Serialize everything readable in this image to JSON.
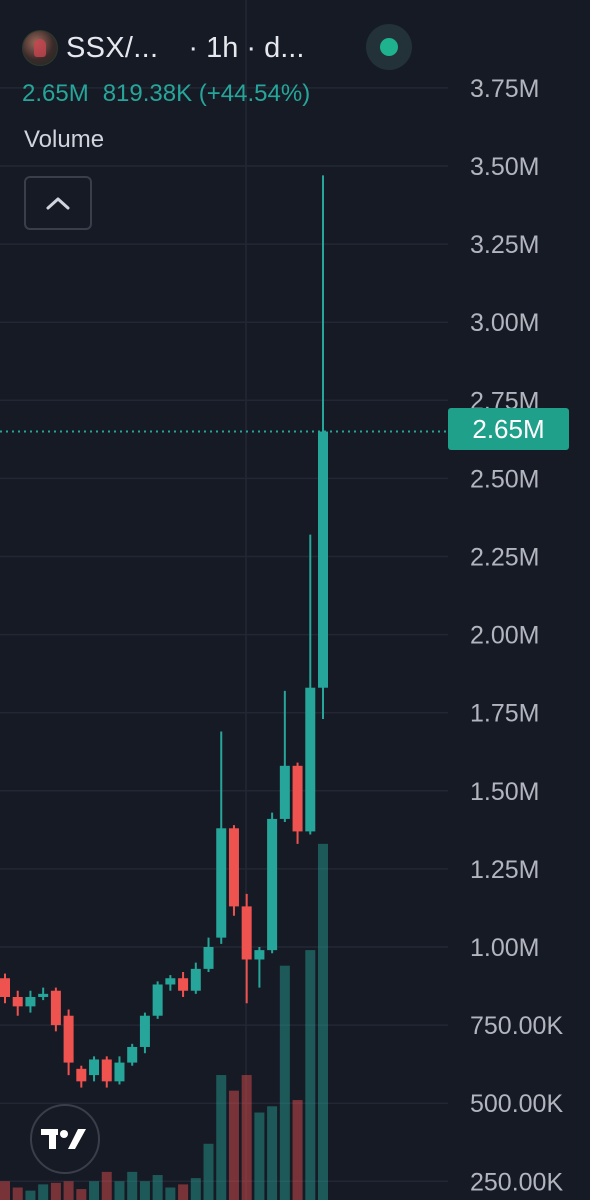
{
  "header": {
    "symbol": "SSX/...",
    "interval": "· 1h · d...",
    "last_value": "2.65M",
    "change": "819.38K (+44.54%)",
    "volume_label": "Volume"
  },
  "price_tag": "2.65M",
  "colors": {
    "background": "#161a25",
    "up": "#26a69a",
    "down": "#ef5350",
    "grid": "#232735",
    "axis_text": "#b2b5be"
  },
  "icons": {
    "avatar": "token-avatar-icon",
    "live": "live-status-icon",
    "collapse": "chevron-up-icon",
    "logo": "tradingview-logo-icon"
  },
  "chart_data": {
    "type": "candlestick",
    "title": "",
    "xlabel": "",
    "ylabel": "",
    "y_ticks": [
      "250.00K",
      "500.00K",
      "750.00K",
      "1.00M",
      "1.25M",
      "1.50M",
      "1.75M",
      "2.00M",
      "2.25M",
      "2.50M",
      "2.75M",
      "3.00M",
      "3.25M",
      "3.50M",
      "3.75M"
    ],
    "y_tick_values": [
      250000,
      500000,
      750000,
      1000000,
      1250000,
      1500000,
      1750000,
      2000000,
      2250000,
      2500000,
      2750000,
      3000000,
      3250000,
      3500000,
      3750000
    ],
    "ylim": [
      220000,
      3950000
    ],
    "grid": true,
    "current_price": 2650000,
    "candles": [
      {
        "open": 900000,
        "high": 915000,
        "low": 820000,
        "close": 840000
      },
      {
        "open": 840000,
        "high": 860000,
        "low": 780000,
        "close": 810000
      },
      {
        "open": 810000,
        "high": 860000,
        "low": 790000,
        "close": 840000
      },
      {
        "open": 840000,
        "high": 870000,
        "low": 830000,
        "close": 850000
      },
      {
        "open": 860000,
        "high": 870000,
        "low": 730000,
        "close": 750000
      },
      {
        "open": 780000,
        "high": 800000,
        "low": 590000,
        "close": 630000
      },
      {
        "open": 610000,
        "high": 620000,
        "low": 550000,
        "close": 570000
      },
      {
        "open": 590000,
        "high": 650000,
        "low": 570000,
        "close": 640000
      },
      {
        "open": 640000,
        "high": 650000,
        "low": 550000,
        "close": 570000
      },
      {
        "open": 570000,
        "high": 650000,
        "low": 560000,
        "close": 630000
      },
      {
        "open": 630000,
        "high": 690000,
        "low": 620000,
        "close": 680000
      },
      {
        "open": 680000,
        "high": 790000,
        "low": 660000,
        "close": 780000
      },
      {
        "open": 780000,
        "high": 890000,
        "low": 770000,
        "close": 880000
      },
      {
        "open": 880000,
        "high": 910000,
        "low": 860000,
        "close": 900000
      },
      {
        "open": 900000,
        "high": 920000,
        "low": 840000,
        "close": 860000
      },
      {
        "open": 860000,
        "high": 950000,
        "low": 850000,
        "close": 930000
      },
      {
        "open": 930000,
        "high": 1030000,
        "low": 920000,
        "close": 1000000
      },
      {
        "open": 1030000,
        "high": 1690000,
        "low": 1010000,
        "close": 1380000
      },
      {
        "open": 1380000,
        "high": 1390000,
        "low": 1100000,
        "close": 1130000
      },
      {
        "open": 1130000,
        "high": 1170000,
        "low": 820000,
        "close": 960000
      },
      {
        "open": 960000,
        "high": 1000000,
        "low": 870000,
        "close": 990000
      },
      {
        "open": 990000,
        "high": 1430000,
        "low": 980000,
        "close": 1410000
      },
      {
        "open": 1410000,
        "high": 1820000,
        "low": 1400000,
        "close": 1580000
      },
      {
        "open": 1580000,
        "high": 1590000,
        "low": 1330000,
        "close": 1370000
      },
      {
        "open": 1370000,
        "high": 2320000,
        "low": 1360000,
        "close": 1830000
      },
      {
        "open": 1830000,
        "high": 3470000,
        "low": 1730000,
        "close": 2650000
      }
    ],
    "volume_note": "Volume bars share the price axis",
    "volume": [
      60000,
      40000,
      30000,
      50000,
      55000,
      60000,
      35000,
      60000,
      90000,
      60000,
      90000,
      60000,
      80000,
      40000,
      50000,
      70000,
      180000,
      400000,
      350000,
      400000,
      280000,
      300000,
      750000,
      320000,
      800000,
      1140000
    ]
  }
}
